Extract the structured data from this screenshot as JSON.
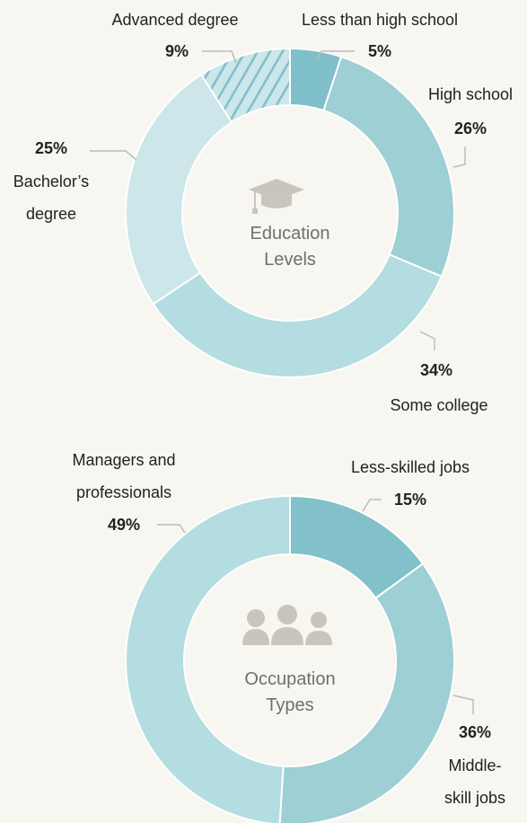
{
  "chart_data": [
    {
      "type": "pie",
      "title": "Education Levels",
      "categories": [
        "Less than high school",
        "High school",
        "Some college",
        "Bachelor’s degree",
        "Advanced degree"
      ],
      "values": [
        5,
        26,
        34,
        25,
        9
      ],
      "value_labels": [
        "5%",
        "26%",
        "34%",
        "25%",
        "9%"
      ],
      "colors": [
        "#7fbfca",
        "#9dcfd4",
        "#b3dde0",
        "#cce6e9",
        "#cce6e9"
      ],
      "hatched": [
        false,
        false,
        false,
        false,
        true
      ]
    },
    {
      "type": "pie",
      "title": "Occupation Types",
      "categories": [
        "Less-skilled jobs",
        "Middle-skill jobs",
        "Managers and professionals"
      ],
      "values": [
        15,
        36,
        49
      ],
      "value_labels": [
        "15%",
        "36%",
        "49%"
      ],
      "colors": [
        "#82c0ca",
        "#9dcfd4",
        "#b3dde0"
      ],
      "hatched": [
        false,
        false,
        false
      ]
    }
  ]
}
